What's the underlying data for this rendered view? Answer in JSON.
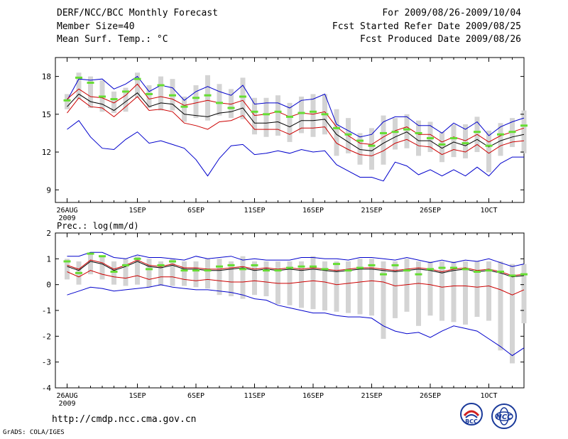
{
  "header": {
    "title": "DERF/NCC/BCC Monthly Forecast",
    "member_size": "Member Size=40",
    "variable_1": "Mean Surf. Temp.: °C",
    "period": "For 2009/08/26-2009/10/04",
    "start_date": "Fcst Started Refer Date 2009/08/25",
    "produced_date": "Fcst Produced Date 2009/08/26"
  },
  "footer": {
    "url": "http://cmdp.ncc.cma.gov.cn",
    "grads_credit": "GrADS: COLA/IGES",
    "logo1_text": "BCC",
    "logo2_text": "NCC"
  },
  "colors": {
    "mean": "#000000",
    "spread": "#cc0000",
    "envelope": "#0000cc",
    "observed": "#66dd33",
    "ensemble_bar": "#d4d4d4"
  },
  "chart_data": [
    {
      "type": "line",
      "title": "Mean Surf. Temp.: °C",
      "x_tick_labels": [
        "26AUG",
        "1SEP",
        "6SEP",
        "11SEP",
        "16SEP",
        "21SEP",
        "26SEP",
        "1OCT"
      ],
      "x_tick_days": [
        0,
        6,
        11,
        16,
        21,
        26,
        31,
        36
      ],
      "x_sub_label": "2009",
      "xlim": [
        -1,
        39
      ],
      "ylim": [
        8,
        19.5
      ],
      "y_ticks": [
        9,
        12,
        15,
        18
      ],
      "series": [
        {
          "name": "ensemble mean",
          "role": "mean",
          "values": [
            15.6,
            16.6,
            16.0,
            15.8,
            15.3,
            16.0,
            16.7,
            15.6,
            15.9,
            15.8,
            15.0,
            14.9,
            14.8,
            15.1,
            15.2,
            15.5,
            14.3,
            14.3,
            14.4,
            14.0,
            14.5,
            14.5,
            14.6,
            13.4,
            12.8,
            12.2,
            12.1,
            12.7,
            13.2,
            13.6,
            12.9,
            12.9,
            12.3,
            12.8,
            12.5,
            13.0,
            12.4,
            12.9,
            13.2,
            13.4
          ]
        },
        {
          "name": "mean + 1 sd",
          "role": "upper_spread",
          "values": [
            16.2,
            17.0,
            16.4,
            16.3,
            15.9,
            16.5,
            17.4,
            16.2,
            16.4,
            16.2,
            15.7,
            15.9,
            16.1,
            15.9,
            15.8,
            16.1,
            14.9,
            15.0,
            15.2,
            14.8,
            15.1,
            15.0,
            15.2,
            14.0,
            13.3,
            12.7,
            12.6,
            13.2,
            13.7,
            14.0,
            13.4,
            13.4,
            12.8,
            13.2,
            12.9,
            13.4,
            12.8,
            13.3,
            13.6,
            13.9
          ]
        },
        {
          "name": "mean - 1 sd",
          "role": "lower_spread",
          "values": [
            15.1,
            16.3,
            15.6,
            15.5,
            14.8,
            15.6,
            16.4,
            15.3,
            15.4,
            15.2,
            14.3,
            14.1,
            13.8,
            14.4,
            14.5,
            14.9,
            13.8,
            13.8,
            13.8,
            13.4,
            13.9,
            13.9,
            14.0,
            12.7,
            12.2,
            11.8,
            11.7,
            12.1,
            12.7,
            13.0,
            12.5,
            12.4,
            11.8,
            12.2,
            12.0,
            12.6,
            11.9,
            12.5,
            12.8,
            12.9
          ]
        },
        {
          "name": "ensemble max",
          "role": "upper_envelope",
          "values": [
            16.1,
            17.8,
            17.7,
            17.8,
            17.0,
            17.4,
            18.0,
            16.8,
            17.3,
            17.1,
            16.1,
            16.8,
            17.2,
            16.8,
            16.5,
            17.3,
            15.8,
            15.9,
            15.9,
            15.5,
            16.1,
            16.2,
            16.6,
            14.2,
            13.7,
            13.2,
            13.4,
            14.4,
            14.8,
            14.8,
            14.1,
            14.1,
            13.5,
            14.3,
            13.8,
            14.4,
            13.3,
            14.0,
            14.4,
            14.7
          ]
        },
        {
          "name": "ensemble min",
          "role": "lower_envelope",
          "values": [
            13.8,
            14.5,
            13.2,
            12.3,
            12.2,
            13.0,
            13.6,
            12.7,
            12.9,
            12.6,
            12.3,
            11.4,
            10.1,
            11.5,
            12.5,
            12.6,
            11.8,
            11.9,
            12.1,
            11.9,
            12.2,
            12.0,
            12.1,
            11.0,
            10.5,
            10.0,
            10.0,
            9.7,
            11.2,
            10.9,
            10.2,
            10.6,
            10.1,
            10.6,
            10.1,
            10.8,
            10.1,
            11.1,
            11.6,
            11.6
          ]
        },
        {
          "name": "observed / reference",
          "role": "observed",
          "values": [
            16.1,
            17.9,
            17.5,
            16.4,
            16.2,
            16.8,
            17.8,
            16.6,
            17.3,
            16.5,
            15.6,
            16.3,
            16.5,
            15.9,
            15.5,
            16.4,
            15.2,
            15.0,
            15.2,
            14.8,
            15.1,
            15.2,
            15.0,
            13.9,
            13.4,
            12.9,
            12.5,
            13.5,
            13.6,
            13.8,
            13.5,
            13.1,
            12.6,
            13.1,
            12.7,
            13.6,
            12.5,
            13.4,
            13.6,
            14.1
          ]
        },
        {
          "name": "ensemble bar top",
          "role": "bar_top",
          "values": [
            16.6,
            18.3,
            18.0,
            17.7,
            16.8,
            17.1,
            18.3,
            17.3,
            18.0,
            17.8,
            16.4,
            17.3,
            18.1,
            17.4,
            17.0,
            17.9,
            16.3,
            16.3,
            16.5,
            15.9,
            16.4,
            16.6,
            16.6,
            15.4,
            14.7,
            13.5,
            13.9,
            14.9,
            14.7,
            15.0,
            14.5,
            14.4,
            13.6,
            14.2,
            14.2,
            14.8,
            13.7,
            14.3,
            14.7,
            15.3
          ]
        },
        {
          "name": "ensemble bar bottom",
          "role": "bar_bottom",
          "values": [
            15.4,
            16.2,
            15.5,
            15.2,
            15.1,
            15.2,
            16.3,
            15.5,
            15.3,
            15.3,
            14.4,
            14.7,
            14.5,
            14.9,
            14.7,
            14.6,
            13.4,
            13.2,
            13.3,
            12.8,
            13.5,
            13.2,
            13.4,
            11.7,
            11.9,
            11.0,
            10.6,
            11.0,
            12.2,
            12.3,
            11.7,
            12.0,
            11.2,
            11.6,
            11.5,
            12.0,
            10.4,
            11.7,
            12.4,
            11.9
          ]
        }
      ]
    },
    {
      "type": "line",
      "title": "Prec.: log(mm/d)",
      "x_tick_labels": [
        "26AUG",
        "1SEP",
        "6SEP",
        "11SEP",
        "16SEP",
        "21SEP",
        "26SEP",
        "1OCT"
      ],
      "x_tick_days": [
        0,
        6,
        11,
        16,
        21,
        26,
        31,
        36
      ],
      "x_sub_label": "2009",
      "xlim": [
        -1,
        39
      ],
      "ylim": [
        -4,
        2
      ],
      "y_ticks": [
        -4,
        -3,
        -2,
        -1,
        0,
        1,
        2
      ],
      "series": [
        {
          "name": "ensemble mean",
          "role": "mean",
          "values": [
            0.7,
            0.55,
            0.9,
            0.8,
            0.55,
            0.7,
            0.9,
            0.7,
            0.65,
            0.75,
            0.6,
            0.6,
            0.55,
            0.55,
            0.6,
            0.65,
            0.55,
            0.6,
            0.55,
            0.6,
            0.55,
            0.6,
            0.55,
            0.5,
            0.55,
            0.6,
            0.6,
            0.55,
            0.5,
            0.55,
            0.6,
            0.55,
            0.45,
            0.55,
            0.6,
            0.5,
            0.55,
            0.45,
            0.3,
            0.35
          ]
        },
        {
          "name": "mean + 1 sd",
          "role": "upper_spread",
          "values": [
            0.75,
            0.6,
            0.95,
            0.85,
            0.6,
            0.75,
            0.95,
            0.75,
            0.7,
            0.8,
            0.65,
            0.65,
            0.6,
            0.6,
            0.65,
            0.7,
            0.6,
            0.65,
            0.6,
            0.65,
            0.6,
            0.65,
            0.6,
            0.55,
            0.6,
            0.65,
            0.65,
            0.6,
            0.55,
            0.6,
            0.65,
            0.6,
            0.5,
            0.6,
            0.65,
            0.55,
            0.6,
            0.5,
            0.35,
            0.4
          ]
        },
        {
          "name": "mean - 1 sd",
          "role": "lower_spread",
          "values": [
            0.5,
            0.3,
            0.55,
            0.4,
            0.3,
            0.25,
            0.35,
            0.2,
            0.3,
            0.3,
            0.2,
            0.15,
            0.2,
            0.15,
            0.1,
            0.1,
            0.15,
            0.1,
            0.05,
            0.05,
            0.1,
            0.15,
            0.1,
            0.0,
            0.05,
            0.1,
            0.15,
            0.1,
            -0.05,
            0.0,
            0.05,
            0.0,
            -0.1,
            -0.05,
            -0.05,
            -0.1,
            -0.05,
            -0.2,
            -0.4,
            -0.2
          ]
        },
        {
          "name": "ensemble max",
          "role": "upper_envelope",
          "values": [
            1.1,
            1.1,
            1.25,
            1.25,
            1.05,
            1.0,
            1.15,
            1.05,
            1.05,
            1.0,
            0.95,
            1.1,
            1.0,
            1.05,
            1.1,
            0.95,
            1.0,
            0.95,
            0.95,
            0.95,
            1.05,
            1.05,
            1.0,
            1.0,
            0.95,
            1.05,
            1.05,
            1.0,
            0.95,
            1.05,
            0.95,
            0.85,
            0.95,
            0.85,
            0.95,
            0.9,
            1.0,
            0.85,
            0.7,
            0.8
          ]
        },
        {
          "name": "ensemble min",
          "role": "lower_envelope",
          "values": [
            -0.4,
            -0.25,
            -0.1,
            -0.15,
            -0.25,
            -0.2,
            -0.15,
            -0.1,
            0.0,
            -0.1,
            -0.15,
            -0.2,
            -0.2,
            -0.25,
            -0.3,
            -0.4,
            -0.55,
            -0.6,
            -0.8,
            -0.9,
            -1.0,
            -1.1,
            -1.1,
            -1.2,
            -1.25,
            -1.25,
            -1.3,
            -1.6,
            -1.8,
            -1.9,
            -1.85,
            -2.05,
            -1.8,
            -1.6,
            -1.7,
            -1.8,
            -2.1,
            -2.4,
            -2.75,
            -2.45
          ]
        },
        {
          "name": "observed / reference",
          "role": "observed",
          "values": [
            0.9,
            0.45,
            1.2,
            1.1,
            0.5,
            0.75,
            1.0,
            0.6,
            0.75,
            0.9,
            0.55,
            0.55,
            0.55,
            0.7,
            0.75,
            0.6,
            0.75,
            0.55,
            0.55,
            0.65,
            0.7,
            0.7,
            0.6,
            0.8,
            0.55,
            0.65,
            0.75,
            0.4,
            0.75,
            0.55,
            0.4,
            0.6,
            0.65,
            0.65,
            0.6,
            0.5,
            0.55,
            0.5,
            0.35,
            0.4
          ]
        },
        {
          "name": "ensemble bar top",
          "role": "bar_top",
          "values": [
            1.0,
            0.9,
            1.2,
            1.1,
            0.9,
            1.0,
            1.1,
            1.0,
            0.9,
            1.0,
            0.9,
            0.9,
            1.0,
            1.0,
            0.9,
            1.1,
            0.9,
            0.9,
            0.9,
            0.9,
            0.9,
            1.1,
            0.9,
            0.9,
            0.9,
            1.0,
            1.0,
            0.9,
            0.9,
            1.0,
            0.9,
            0.9,
            0.9,
            0.9,
            0.9,
            0.9,
            0.9,
            0.9,
            0.8,
            0.8
          ]
        },
        {
          "name": "ensemble bar bottom",
          "role": "bar_bottom",
          "values": [
            0.2,
            0.0,
            0.4,
            0.2,
            0.0,
            -0.05,
            0.0,
            -0.1,
            -0.05,
            -0.05,
            -0.05,
            -0.1,
            -0.15,
            -0.4,
            -0.45,
            -0.55,
            -0.4,
            -0.45,
            -0.75,
            -0.8,
            -0.9,
            -0.95,
            -1.0,
            -1.05,
            -1.1,
            -1.15,
            -1.2,
            -2.1,
            -1.3,
            -1.05,
            -1.6,
            -1.2,
            -1.4,
            -1.45,
            -1.55,
            -1.25,
            -1.4,
            -2.55,
            -3.05,
            -1.5
          ]
        }
      ]
    }
  ]
}
